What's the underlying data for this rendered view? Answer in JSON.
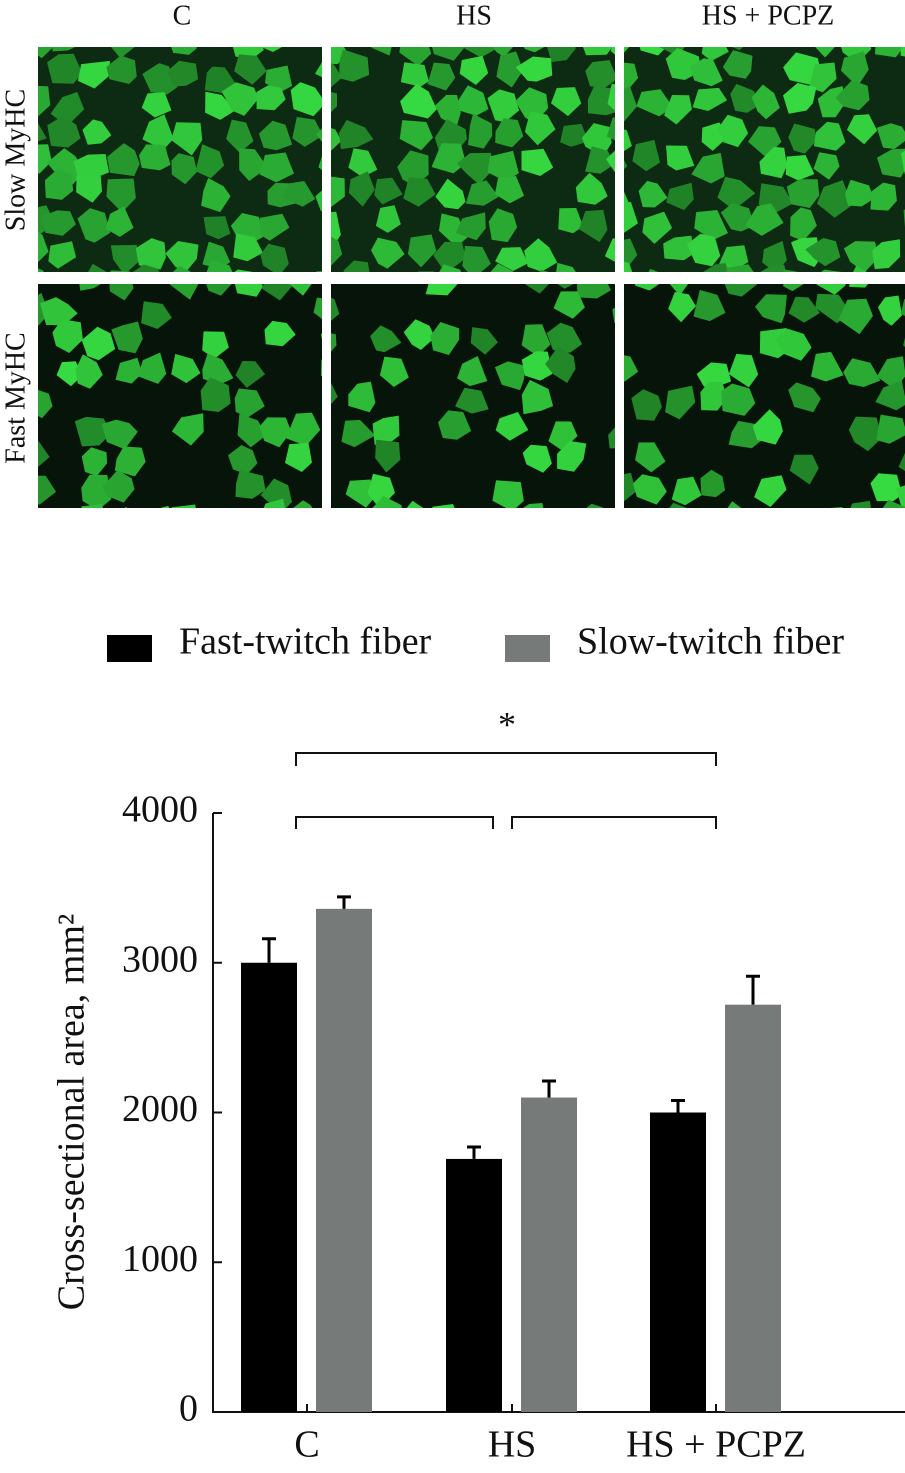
{
  "image_panel": {
    "columns": [
      "C",
      "HS",
      "HS + PCPZ"
    ],
    "rows": [
      "Slow MyHC",
      "Fast MyHC"
    ]
  },
  "chart_data": {
    "type": "bar",
    "y_label": "Cross-sectional area, mm²",
    "categories": [
      "C",
      "HS",
      "HS + PCPZ"
    ],
    "series": [
      {
        "name": "Fast-twitch fiber",
        "color": "#000000",
        "values": [
          3000,
          1690,
          2000
        ],
        "errors": [
          160,
          80,
          80
        ]
      },
      {
        "name": "Slow-twitch fiber",
        "color": "#767b7a",
        "values": [
          3360,
          2100,
          2720
        ],
        "errors": [
          80,
          110,
          190
        ]
      }
    ],
    "annotation": "*",
    "ylim": [
      0,
      4000
    ],
    "yticks": [
      0,
      1000,
      2000,
      3000,
      4000
    ]
  }
}
